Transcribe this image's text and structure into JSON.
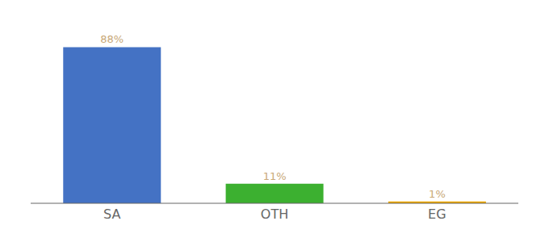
{
  "chart_data": {
    "type": "bar",
    "categories": [
      "SA",
      "OTH",
      "EG"
    ],
    "values": [
      88,
      11,
      1
    ],
    "value_labels": [
      "88%",
      "11%",
      "1%"
    ],
    "colors": [
      "#4472c4",
      "#3cb030",
      "#f0a800"
    ],
    "ylim": [
      0,
      100
    ],
    "grid": false,
    "data_labels": true,
    "tick_labels": "x"
  }
}
